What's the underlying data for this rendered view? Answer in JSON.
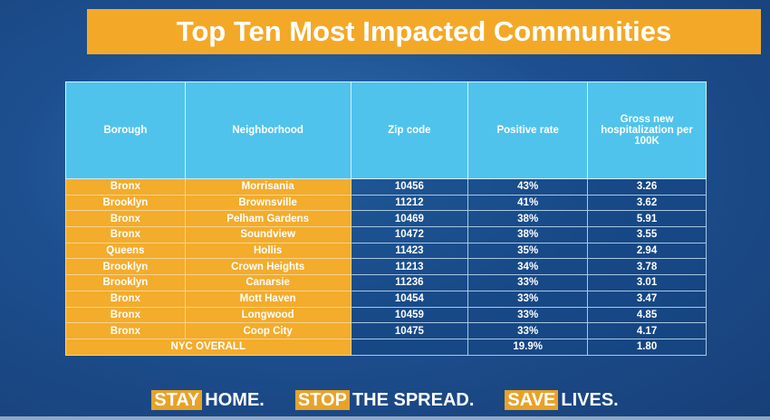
{
  "title": "Top Ten Most Impacted Communities",
  "table": {
    "headers": [
      "Borough",
      "Neighborhood",
      "Zip code",
      "Positive rate",
      "Gross new hospitalization per 100K"
    ],
    "rows": [
      [
        "Bronx",
        "Morrisania",
        "10456",
        "43%",
        "3.26"
      ],
      [
        "Brooklyn",
        "Brownsville",
        "11212",
        "41%",
        "3.62"
      ],
      [
        "Bronx",
        "Pelham Gardens",
        "10469",
        "38%",
        "5.91"
      ],
      [
        "Bronx",
        "Soundview",
        "10472",
        "38%",
        "3.55"
      ],
      [
        "Queens",
        "Hollis",
        "11423",
        "35%",
        "2.94"
      ],
      [
        "Brooklyn",
        "Crown Heights",
        "11213",
        "34%",
        "3.78"
      ],
      [
        "Brooklyn",
        "Canarsie",
        "11236",
        "33%",
        "3.01"
      ],
      [
        "Bronx",
        "Mott Haven",
        "10454",
        "33%",
        "3.47"
      ],
      [
        "Bronx",
        "Longwood",
        "10459",
        "33%",
        "4.85"
      ],
      [
        "Bronx",
        "Coop City",
        "10475",
        "33%",
        "4.17"
      ]
    ],
    "overall": {
      "label": "NYC OVERALL",
      "zip": "",
      "positive_rate": "19.9%",
      "hospitalization": "1.80"
    }
  },
  "footer": [
    {
      "highlight": "STAY",
      "rest": "HOME."
    },
    {
      "highlight": "STOP",
      "rest": "THE SPREAD."
    },
    {
      "highlight": "SAVE",
      "rest": "LIVES."
    }
  ],
  "colors": {
    "accent": "#f3a927",
    "header": "#4fc3ec",
    "background": "#1d4f8f"
  }
}
